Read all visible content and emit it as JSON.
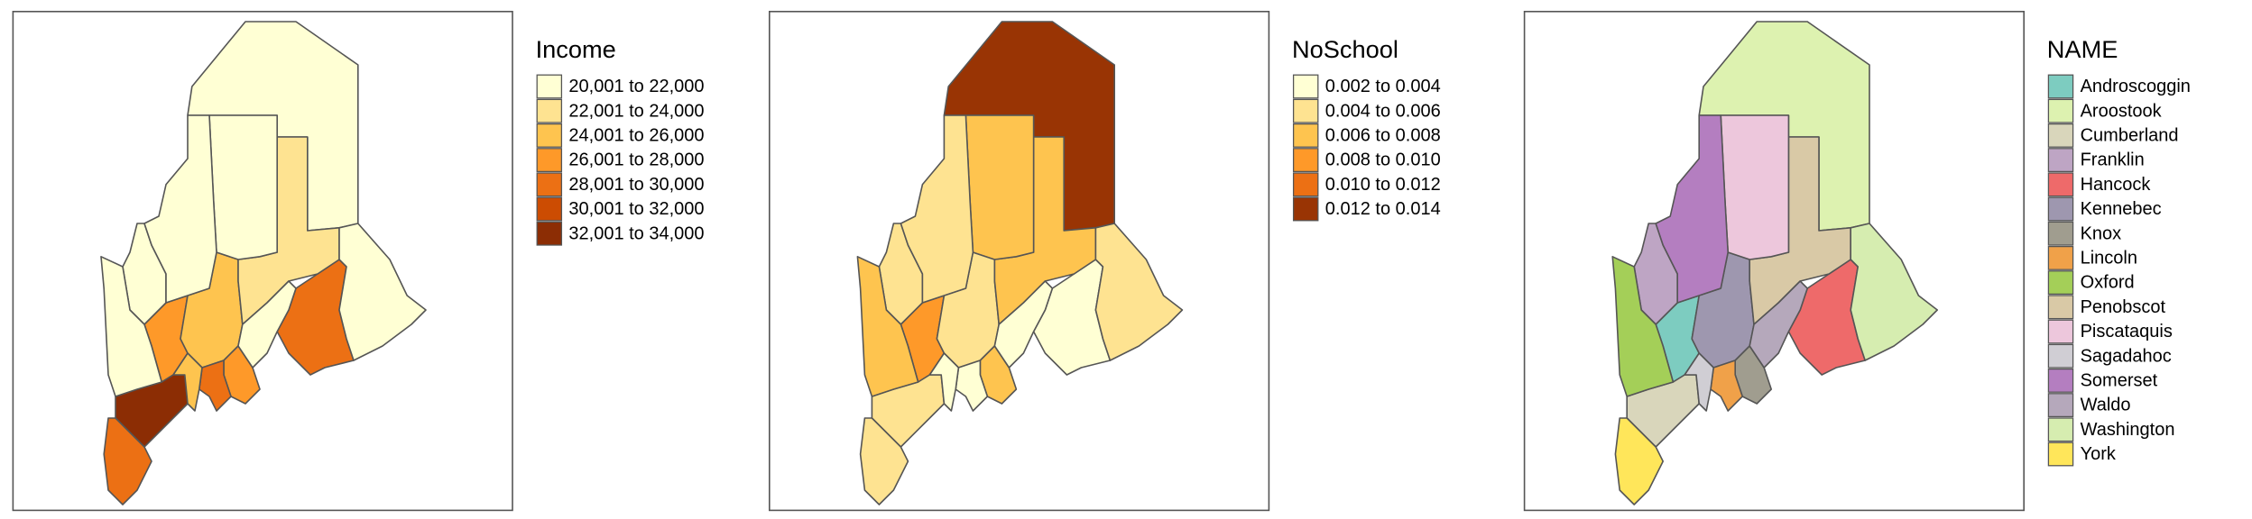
{
  "panels": [
    {
      "title": "Income",
      "legend": [
        {
          "label": "20,001 to 22,000",
          "color": "#ffffd4"
        },
        {
          "label": "22,001 to 24,000",
          "color": "#fee391"
        },
        {
          "label": "24,001 to 26,000",
          "color": "#fec44f"
        },
        {
          "label": "26,001 to 28,000",
          "color": "#fe9929"
        },
        {
          "label": "28,001 to 30,000",
          "color": "#ec7014"
        },
        {
          "label": "30,001 to 32,000",
          "color": "#cc4c02"
        },
        {
          "label": "32,001 to 34,000",
          "color": "#8c2d04"
        }
      ],
      "classes": [
        3,
        0,
        6,
        0,
        4,
        2,
        3,
        4,
        0,
        1,
        0,
        2,
        0,
        0,
        0,
        4
      ]
    },
    {
      "title": "NoSchool",
      "legend": [
        {
          "label": "0.002 to 0.004",
          "color": "#ffffd4"
        },
        {
          "label": "0.004 to 0.006",
          "color": "#fee391"
        },
        {
          "label": "0.006 to 0.008",
          "color": "#fec44f"
        },
        {
          "label": "0.008 to 0.010",
          "color": "#fe9929"
        },
        {
          "label": "0.010 to 0.012",
          "color": "#ec7014"
        },
        {
          "label": "0.012 to 0.014",
          "color": "#993404"
        }
      ],
      "classes": [
        3,
        5,
        1,
        1,
        0,
        1,
        2,
        0,
        2,
        2,
        2,
        0,
        1,
        0,
        1,
        1
      ]
    },
    {
      "title": "NAME",
      "legend": [
        {
          "label": "Androscoggin",
          "color": "#7dccc0"
        },
        {
          "label": "Aroostook",
          "color": "#ddf2b0"
        },
        {
          "label": "Cumberland",
          "color": "#d9d6bb"
        },
        {
          "label": "Franklin",
          "color": "#bea5c4"
        },
        {
          "label": "Hancock",
          "color": "#ee6a6a"
        },
        {
          "label": "Kennebec",
          "color": "#9e97af"
        },
        {
          "label": "Knox",
          "color": "#a09d8f"
        },
        {
          "label": "Lincoln",
          "color": "#f0a149"
        },
        {
          "label": "Oxford",
          "color": "#a4cf58"
        },
        {
          "label": "Penobscot",
          "color": "#d9c9a6"
        },
        {
          "label": "Piscataquis",
          "color": "#edc7dc"
        },
        {
          "label": "Sagadahoc",
          "color": "#d0ced4"
        },
        {
          "label": "Somerset",
          "color": "#b47ec0"
        },
        {
          "label": "Waldo",
          "color": "#b5a8bb"
        },
        {
          "label": "Washington",
          "color": "#d6edb0"
        },
        {
          "label": "York",
          "color": "#ffe65a"
        }
      ],
      "classes": [
        0,
        1,
        2,
        3,
        4,
        5,
        6,
        7,
        8,
        9,
        10,
        11,
        12,
        13,
        14,
        15
      ]
    }
  ]
}
